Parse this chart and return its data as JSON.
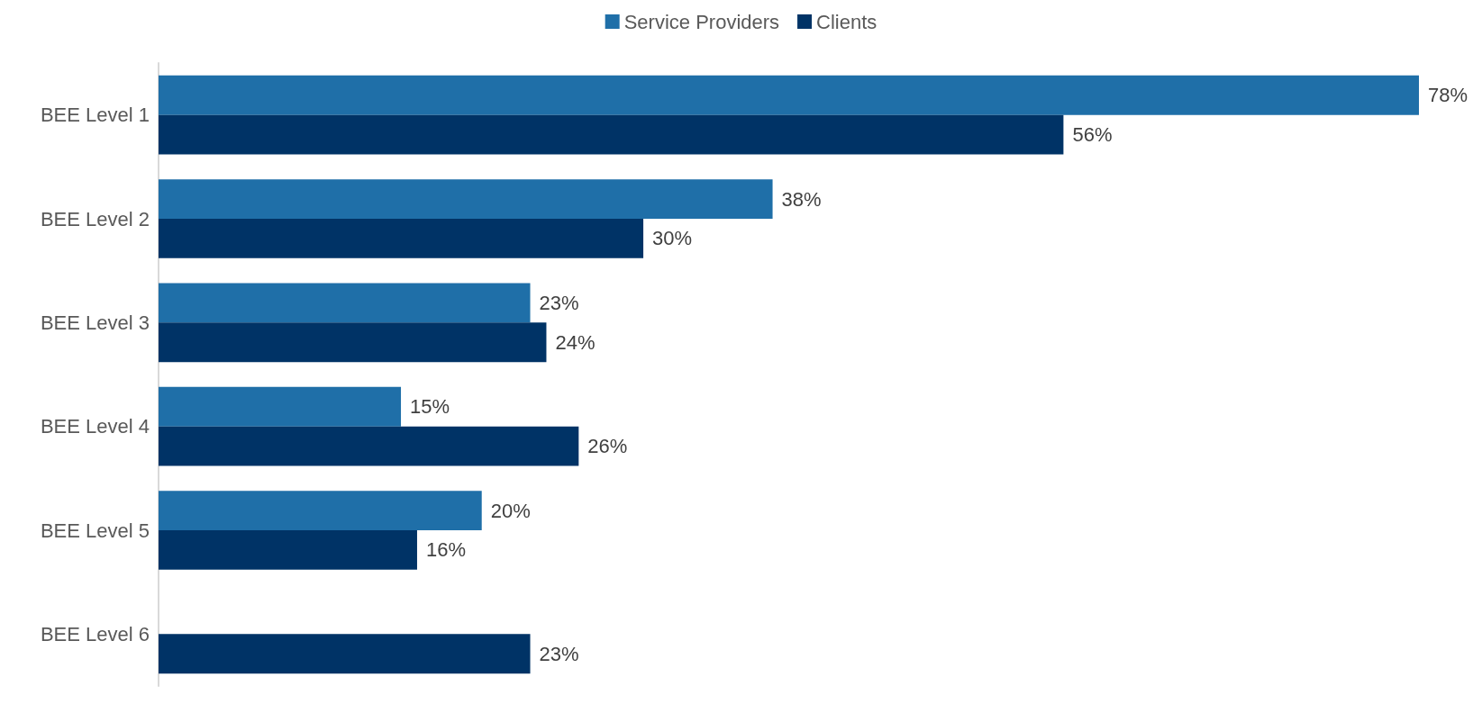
{
  "chart_data": {
    "type": "bar",
    "orientation": "horizontal",
    "categories": [
      "BEE Level 1",
      "BEE Level 2",
      "BEE Level 3",
      "BEE Level 4",
      "BEE Level 5",
      "BEE Level 6"
    ],
    "series": [
      {
        "name": "Service Providers",
        "color": "#1f6fa8",
        "values": [
          78,
          38,
          23,
          15,
          20,
          null
        ],
        "value_labels": [
          "78%",
          "38%",
          "23%",
          "15%",
          "20%",
          null
        ]
      },
      {
        "name": "Clients",
        "color": "#003366",
        "values": [
          56,
          30,
          24,
          26,
          16,
          23
        ],
        "value_labels": [
          "56%",
          "30%",
          "24%",
          "26%",
          "16%",
          "23%"
        ]
      }
    ],
    "legend": "top"
  }
}
